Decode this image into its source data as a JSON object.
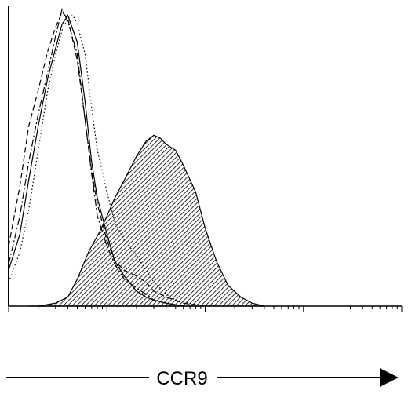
{
  "chart_data": {
    "type": "area",
    "title": "",
    "xlabel": "CCR9",
    "ylabel": "",
    "x_scale": "log",
    "xlim": [
      1,
      10000
    ],
    "ylim": [
      0,
      100
    ],
    "grid": false,
    "legend": "none",
    "series": [
      {
        "style": "hatched-filled",
        "x": [
          1.6,
          2.0,
          3.0,
          4.0,
          5.0,
          6.5,
          8.5,
          10,
          12,
          15,
          20,
          25,
          30,
          35,
          40,
          50,
          60,
          80,
          100,
          130,
          170,
          230,
          300,
          400
        ],
        "y": [
          0,
          0,
          1,
          3,
          9,
          18,
          25,
          30,
          36,
          42,
          50,
          55,
          57,
          56,
          54,
          52,
          47,
          38,
          26,
          15,
          7,
          3,
          1,
          0
        ]
      },
      {
        "style": "solid",
        "x": [
          1,
          1.3,
          1.6,
          2.0,
          2.5,
          3.0,
          3.5,
          4.0,
          5.0,
          6.0,
          7.0,
          8.0,
          10,
          12,
          15,
          20,
          25,
          30,
          40,
          60
        ],
        "y": [
          12,
          24,
          42,
          60,
          76,
          86,
          94,
          97,
          88,
          68,
          48,
          36,
          24,
          15,
          10,
          5,
          3,
          2,
          1,
          0
        ]
      },
      {
        "style": "dashed",
        "x": [
          1,
          1.3,
          1.6,
          2.0,
          2.5,
          3.0,
          3.5,
          4.0,
          5.0,
          6.0,
          7.0,
          8.0,
          10,
          12,
          15,
          20,
          25,
          30,
          40,
          60,
          100
        ],
        "y": [
          20,
          40,
          60,
          72,
          85,
          93,
          98,
          96,
          82,
          62,
          45,
          34,
          22,
          15,
          12,
          10,
          8,
          5,
          3,
          1,
          0
        ]
      },
      {
        "style": "dotted",
        "x": [
          1,
          1.3,
          1.6,
          2.0,
          2.5,
          3.0,
          3.5,
          4.0,
          4.5,
          5.0,
          6.0,
          7.0,
          8.0,
          10,
          12,
          15,
          20,
          25,
          30,
          40,
          50,
          70,
          100
        ],
        "y": [
          8,
          18,
          32,
          52,
          72,
          84,
          92,
          96,
          97,
          94,
          84,
          66,
          52,
          38,
          28,
          22,
          17,
          12,
          8,
          4,
          2,
          1,
          0
        ]
      },
      {
        "style": "dash-dot",
        "x": [
          1,
          1.3,
          1.6,
          2.0,
          2.5,
          3.0,
          3.5,
          4.0,
          5.0,
          6.0,
          7.0,
          8.0,
          10,
          12,
          15,
          20,
          25,
          30,
          40,
          60
        ],
        "y": [
          14,
          30,
          48,
          64,
          78,
          90,
          99,
          95,
          84,
          62,
          44,
          30,
          20,
          14,
          9,
          6,
          4,
          2,
          1,
          0
        ]
      }
    ]
  }
}
